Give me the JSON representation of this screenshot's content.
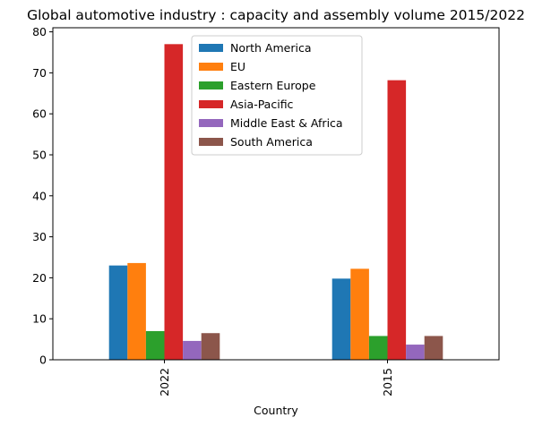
{
  "chart_data": {
    "type": "bar",
    "title": "Global automotive industry : capacity and assembly volume 2015/2022",
    "xlabel": "Country",
    "ylabel": "",
    "categories": [
      "2022",
      "2015"
    ],
    "ylim": [
      0,
      81
    ],
    "yticks": [
      0,
      10,
      20,
      30,
      40,
      50,
      60,
      70,
      80
    ],
    "grid": false,
    "legend_position": "top-center",
    "series": [
      {
        "name": "North America",
        "color": "#1f77b4",
        "values": [
          23.0,
          19.8
        ]
      },
      {
        "name": "EU",
        "color": "#ff7f0e",
        "values": [
          23.6,
          22.2
        ]
      },
      {
        "name": "Eastern Europe",
        "color": "#2ca02c",
        "values": [
          7.0,
          5.8
        ]
      },
      {
        "name": "Asia-Pacific",
        "color": "#d62728",
        "values": [
          77.0,
          68.2
        ]
      },
      {
        "name": "Middle East & Africa",
        "color": "#9467bd",
        "values": [
          4.6,
          3.7
        ]
      },
      {
        "name": "South America",
        "color": "#8c564b",
        "values": [
          6.5,
          5.8
        ]
      }
    ]
  }
}
